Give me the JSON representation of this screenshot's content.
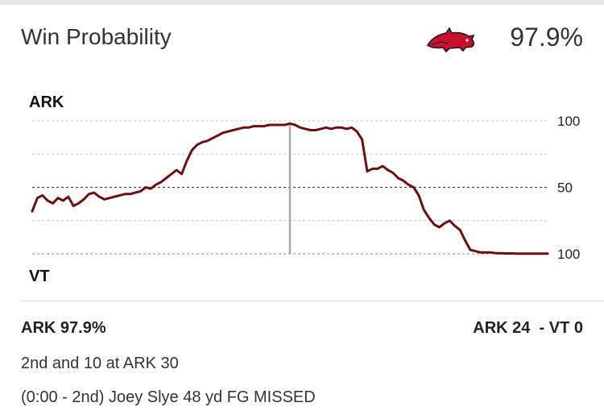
{
  "header": {
    "title": "Win Probability",
    "logo_icon": "razorback-hog-icon",
    "probability": "97.9%"
  },
  "chart_data": {
    "type": "line",
    "top_team": "ARK",
    "bottom_team": "VT",
    "y_ticks": [
      {
        "value": 100,
        "label": "100"
      },
      {
        "value": 50,
        "label": "50"
      },
      {
        "value": 0,
        "label": "100"
      }
    ],
    "ylim": [
      0,
      100
    ],
    "xlim": [
      0,
      100
    ],
    "midline_value": 50,
    "halftime_x": 50,
    "line_color": "#6b0f12",
    "points": [
      [
        0,
        32
      ],
      [
        1,
        42
      ],
      [
        2,
        44
      ],
      [
        3,
        40
      ],
      [
        4,
        38
      ],
      [
        5,
        42
      ],
      [
        6,
        40
      ],
      [
        7,
        43
      ],
      [
        8,
        36
      ],
      [
        9,
        38
      ],
      [
        10,
        41
      ],
      [
        11,
        45
      ],
      [
        12,
        46
      ],
      [
        13,
        43
      ],
      [
        14,
        41
      ],
      [
        15,
        42
      ],
      [
        16,
        43
      ],
      [
        17,
        44
      ],
      [
        18,
        45
      ],
      [
        19,
        45
      ],
      [
        20,
        46
      ],
      [
        21,
        47
      ],
      [
        22,
        50
      ],
      [
        23,
        49
      ],
      [
        24,
        52
      ],
      [
        25,
        54
      ],
      [
        26,
        57
      ],
      [
        27,
        60
      ],
      [
        28,
        63
      ],
      [
        29,
        60
      ],
      [
        30,
        70
      ],
      [
        31,
        78
      ],
      [
        32,
        82
      ],
      [
        33,
        84
      ],
      [
        34,
        85
      ],
      [
        35,
        87
      ],
      [
        36,
        89
      ],
      [
        37,
        91
      ],
      [
        38,
        92
      ],
      [
        39,
        93
      ],
      [
        40,
        94
      ],
      [
        41,
        95
      ],
      [
        42,
        95
      ],
      [
        43,
        96
      ],
      [
        44,
        96
      ],
      [
        45,
        96
      ],
      [
        46,
        97
      ],
      [
        47,
        97
      ],
      [
        48,
        97
      ],
      [
        49,
        97
      ],
      [
        50,
        98
      ],
      [
        51,
        97
      ],
      [
        52,
        95
      ],
      [
        53,
        94
      ],
      [
        54,
        93
      ],
      [
        55,
        93
      ],
      [
        56,
        94
      ],
      [
        57,
        95
      ],
      [
        58,
        94
      ],
      [
        59,
        95
      ],
      [
        60,
        95
      ],
      [
        61,
        94
      ],
      [
        62,
        95
      ],
      [
        63,
        92
      ],
      [
        64,
        86
      ],
      [
        65,
        62
      ],
      [
        66,
        64
      ],
      [
        67,
        64
      ],
      [
        68,
        66
      ],
      [
        69,
        63
      ],
      [
        70,
        61
      ],
      [
        71,
        57
      ],
      [
        72,
        55
      ],
      [
        73,
        52
      ],
      [
        74,
        50
      ],
      [
        75,
        44
      ],
      [
        76,
        33
      ],
      [
        77,
        27
      ],
      [
        78,
        22
      ],
      [
        79,
        20
      ],
      [
        80,
        23
      ],
      [
        81,
        25
      ],
      [
        82,
        21
      ],
      [
        83,
        18
      ],
      [
        84,
        10
      ],
      [
        85,
        3
      ],
      [
        86,
        2
      ],
      [
        87,
        1
      ],
      [
        88,
        1
      ],
      [
        89,
        1
      ],
      [
        90,
        0.5
      ],
      [
        91,
        0.5
      ],
      [
        92,
        0.3
      ],
      [
        93,
        0.3
      ],
      [
        94,
        0.2
      ],
      [
        95,
        0.2
      ],
      [
        96,
        0.2
      ],
      [
        97,
        0.2
      ],
      [
        98,
        0.2
      ],
      [
        100,
        0.2
      ]
    ]
  },
  "footer": {
    "probability": "ARK 97.9%",
    "score": "ARK 24  - VT 0",
    "down_distance": "2nd and 10 at ARK 30",
    "last_play": "(0:00 - 2nd) Joey Slye 48 yd FG MISSED"
  }
}
